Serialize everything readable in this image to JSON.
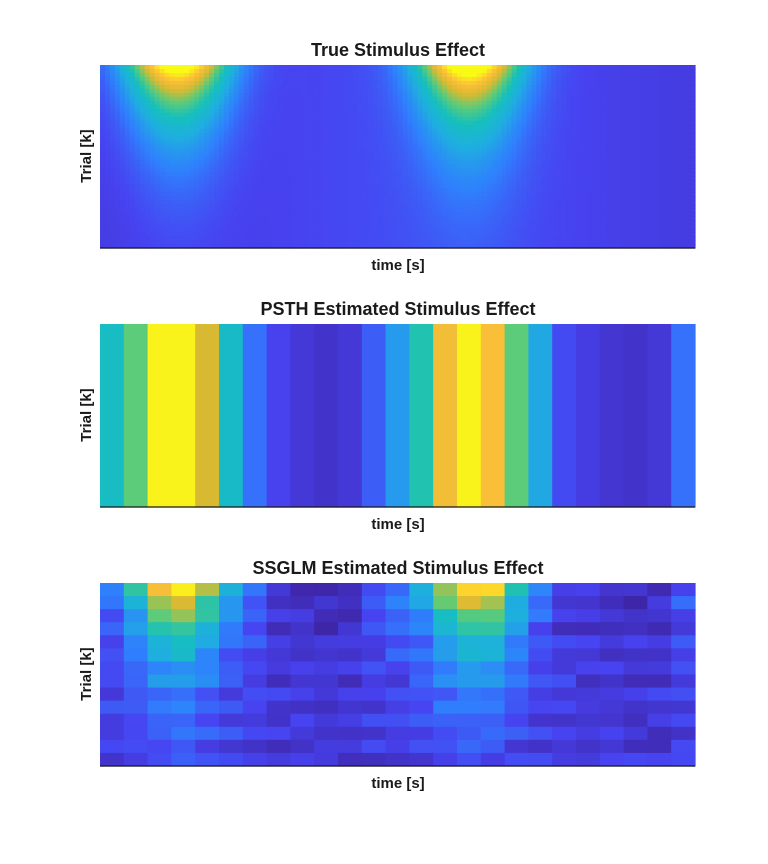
{
  "figure": {
    "colormap": "parula",
    "colormap_stops": [
      "#3e26a8",
      "#4743f1",
      "#2f80fd",
      "#1faee0",
      "#16c0bc",
      "#5fcb77",
      "#d8ba32",
      "#fec039",
      "#f9fb15"
    ]
  },
  "chart_data": [
    {
      "type": "heatmap",
      "title": "True Stimulus Effect",
      "xlabel": "time [s]",
      "ylabel": "Trial [k]",
      "grid": false,
      "xticks": false,
      "yticks": false,
      "smooth": true,
      "value_range": [
        0,
        1
      ],
      "profile": "two gaussian bumps at ~13% and ~62% of the time axis, strongest on the first trial and decaying with trial index",
      "peak_positions": [
        0.13,
        0.62
      ],
      "peak_value": 1.0,
      "baseline": 0.12
    },
    {
      "type": "heatmap",
      "title": "PSTH Estimated Stimulus Effect",
      "xlabel": "time [s]",
      "ylabel": "Trial [k]",
      "grid": false,
      "xticks": false,
      "yticks": false,
      "smooth": false,
      "value_range": [
        0,
        1
      ],
      "column_values": [
        0.48,
        0.62,
        0.98,
        0.98,
        0.75,
        0.46,
        0.22,
        0.12,
        0.08,
        0.06,
        0.08,
        0.18,
        0.32,
        0.52,
        0.84,
        0.98,
        0.86,
        0.62,
        0.36,
        0.14,
        0.1,
        0.07,
        0.06,
        0.08,
        0.22
      ]
    },
    {
      "type": "heatmap",
      "title": "SSGLM Estimated Stimulus Effect",
      "xlabel": "time [s]",
      "ylabel": "Trial [k]",
      "grid": false,
      "xticks": false,
      "yticks": false,
      "smooth": false,
      "value_range": [
        0,
        1
      ],
      "rows": 14,
      "column_peak_values": [
        0.28,
        0.52,
        0.88,
        0.97,
        0.72,
        0.4,
        0.22,
        0.1,
        0.08,
        0.06,
        0.06,
        0.18,
        0.28,
        0.42,
        0.72,
        0.92,
        0.9,
        0.52,
        0.26,
        0.12,
        0.1,
        0.06,
        0.06,
        0.08,
        0.2
      ],
      "decay_with_trial": true
    }
  ]
}
